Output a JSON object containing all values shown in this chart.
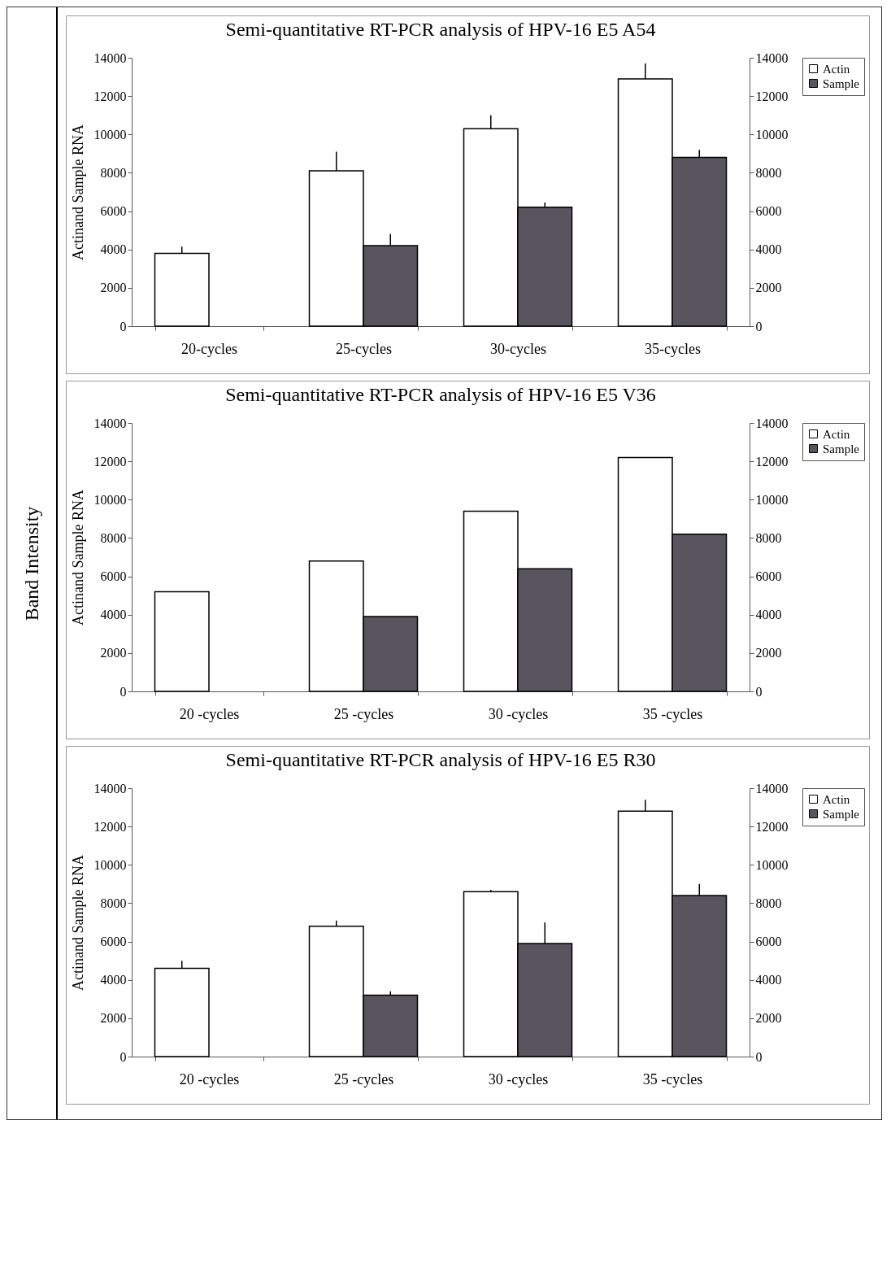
{
  "chart_data": [
    {
      "type": "bar",
      "title": "Semi-quantitative RT-PCR analysis of HPV-16 E5 A54",
      "ylabel": "Actinand Sample RNA",
      "annotations": [
        "Band Intensity"
      ],
      "categories": [
        "20-cycles",
        "25-cycles",
        "30-cycles",
        "35-cycles"
      ],
      "series": [
        {
          "name": "Actin",
          "color": "#ffffff",
          "values": [
            3800,
            8100,
            10300,
            12900
          ],
          "errors": [
            [
              3800,
              4150
            ],
            [
              8100,
              9100
            ],
            [
              10300,
              11000
            ],
            [
              12900,
              13700
            ]
          ]
        },
        {
          "name": "Sample",
          "color": "#58555e",
          "values": [
            null,
            4200,
            6200,
            8800
          ],
          "errors": [
            null,
            [
              4200,
              4800
            ],
            [
              6200,
              6450
            ],
            [
              8800,
              9200
            ]
          ]
        }
      ],
      "ylim": [
        0,
        14000
      ],
      "yticks": [
        0,
        2000,
        4000,
        6000,
        8000,
        10000,
        12000,
        14000
      ],
      "y2lim": [
        0,
        14000
      ],
      "y2ticks": [
        0,
        2000,
        4000,
        6000,
        8000,
        10000,
        12000,
        14000
      ],
      "legend": "top right"
    },
    {
      "type": "bar",
      "title": "Semi-quantitative RT-PCR analysis of HPV-16 E5 V36",
      "ylabel": "Actinand Sample RNA",
      "categories": [
        "20 -cycles",
        "25 -cycles",
        "30 -cycles",
        "35 -cycles"
      ],
      "series": [
        {
          "name": "Actin",
          "color": "#ffffff",
          "values": [
            5200,
            6800,
            9400,
            12200
          ]
        },
        {
          "name": "Sample",
          "color": "#58555e",
          "values": [
            null,
            3900,
            6400,
            8200
          ]
        }
      ],
      "ylim": [
        0,
        14000
      ],
      "yticks": [
        0,
        2000,
        4000,
        6000,
        8000,
        10000,
        12000,
        14000
      ],
      "y2lim": [
        0,
        14000
      ],
      "y2ticks": [
        0,
        2000,
        4000,
        6000,
        8000,
        10000,
        12000,
        14000
      ],
      "legend": "top right"
    },
    {
      "type": "bar",
      "title": "Semi-quantitative RT-PCR analysis of HPV-16 E5 R30",
      "ylabel": "Actinand Sample RNA",
      "categories": [
        "20 -cycles",
        "25 -cycles",
        "30 -cycles",
        "35 -cycles"
      ],
      "series": [
        {
          "name": "Actin",
          "color": "#ffffff",
          "values": [
            4600,
            6800,
            8600,
            12800
          ],
          "errors": [
            [
              4600,
              5000
            ],
            [
              6800,
              7100
            ],
            [
              8600,
              8700
            ],
            [
              12800,
              13400
            ]
          ]
        },
        {
          "name": "Sample",
          "color": "#58555e",
          "values": [
            null,
            3200,
            5900,
            8400
          ],
          "errors": [
            null,
            [
              3200,
              3400
            ],
            [
              5900,
              7000
            ],
            [
              8400,
              9000
            ]
          ]
        }
      ],
      "ylim": [
        0,
        14000
      ],
      "yticks": [
        0,
        2000,
        4000,
        6000,
        8000,
        10000,
        12000,
        14000
      ],
      "y2lim": [
        0,
        14000
      ],
      "y2ticks": [
        0,
        2000,
        4000,
        6000,
        8000,
        10000,
        12000,
        14000
      ],
      "legend": "top right"
    }
  ]
}
